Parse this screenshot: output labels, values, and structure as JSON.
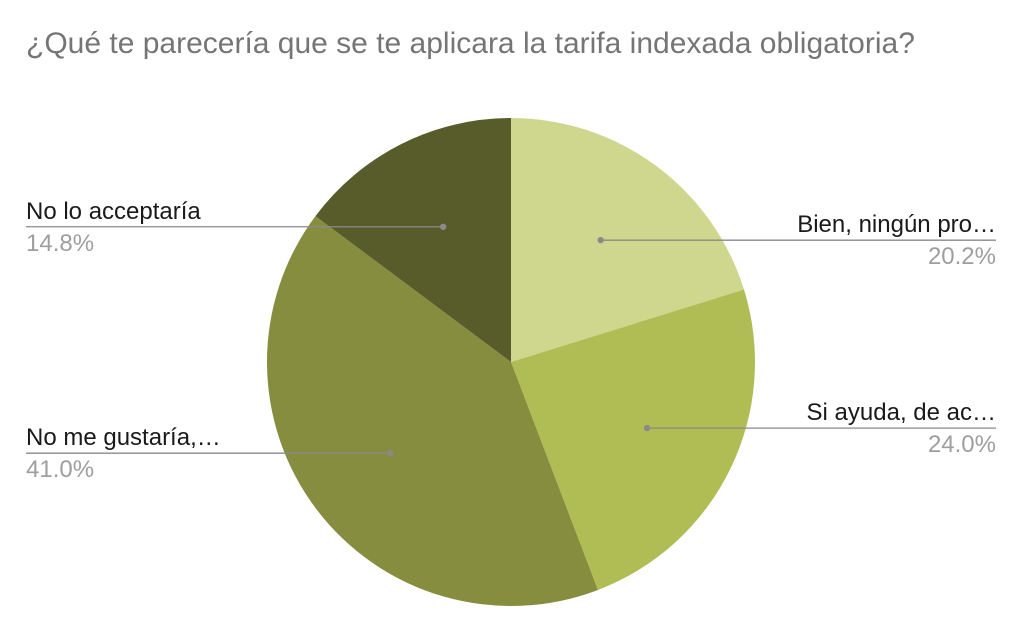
{
  "chart_data": {
    "type": "pie",
    "title": "¿Qué te parecería que se te aplicara la tarifa indexada obligatoria?",
    "start_angle_deg": 0,
    "direction": "clockwise",
    "slices": [
      {
        "label": "Bien, ningún pro…",
        "value": 20.2,
        "display": "20.2%",
        "color": "#cfd78f",
        "label_side": "right"
      },
      {
        "label": "Si ayuda, de ac…",
        "value": 24.0,
        "display": "24.0%",
        "color": "#b0bd55",
        "label_side": "right"
      },
      {
        "label": "No me gustaría,…",
        "value": 41.0,
        "display": "41.0%",
        "color": "#868d3f",
        "label_side": "left"
      },
      {
        "label": "No lo acceptaría",
        "value": 14.8,
        "display": "14.8%",
        "color": "#575c2a",
        "label_side": "left"
      }
    ]
  }
}
